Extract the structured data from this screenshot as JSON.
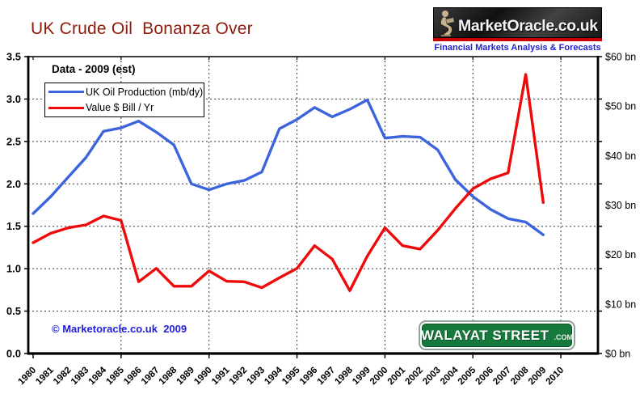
{
  "title": "UK Crude Oil  Bonanza Over",
  "logo": {
    "name": "MarketOracle.co.uk",
    "tagline": "Financial Markets Analysis & Forecasts",
    "stripe_color": "#CC0000",
    "tagline_color": "#2222CC"
  },
  "annotations": {
    "data_note": "Data - 2009 (est)",
    "copyright": "© Marketoracle.co.uk  2009",
    "street_sign": {
      "main": "WALAYAT STREET",
      "suffix": ".COM",
      "color": "#177A3D"
    }
  },
  "chart_data": {
    "type": "line",
    "x": [
      1980,
      1981,
      1982,
      1983,
      1984,
      1985,
      1986,
      1987,
      1988,
      1989,
      1990,
      1991,
      1992,
      1993,
      1994,
      1995,
      1996,
      1997,
      1998,
      1999,
      2000,
      2001,
      2002,
      2003,
      2004,
      2005,
      2006,
      2007,
      2008,
      2009,
      2010
    ],
    "series": [
      {
        "name": "UK Oil Production (mb/dy)",
        "axis": "left",
        "color": "#3C64DC",
        "values": [
          1.65,
          1.85,
          2.08,
          2.31,
          2.62,
          2.66,
          2.74,
          2.61,
          2.46,
          2.0,
          1.93,
          2.0,
          2.04,
          2.14,
          2.65,
          2.76,
          2.9,
          2.79,
          2.88,
          2.99,
          2.54,
          2.56,
          2.55,
          2.4,
          2.05,
          1.85,
          1.7,
          1.59,
          1.55,
          1.4
        ]
      },
      {
        "name": "Value $ Bill / Yr",
        "axis": "right",
        "color": "#EE0A0A",
        "values": [
          22.4,
          24.3,
          25.4,
          26.0,
          27.8,
          26.9,
          14.5,
          17.2,
          13.6,
          13.6,
          16.7,
          14.6,
          14.5,
          13.3,
          15.3,
          17.2,
          21.8,
          19.1,
          12.7,
          19.7,
          25.4,
          21.8,
          21.1,
          24.9,
          29.3,
          33.3,
          35.3,
          36.5,
          56.4,
          30.5
        ]
      }
    ],
    "left_axis": {
      "min": 0,
      "max": 3.5,
      "tick_step": 0.5,
      "tick_labels": [
        "0.0",
        "0.5",
        "1.0",
        "1.5",
        "2.0",
        "2.5",
        "3.0",
        "3.5"
      ]
    },
    "right_axis": {
      "min": 0,
      "max": 60,
      "tick_step": 10,
      "tick_labels": [
        "$0 bn",
        "$10 bn",
        "$20 bn",
        "$30 bn",
        "$40 bn",
        "$50 bn",
        "$60 bn"
      ]
    },
    "x_gridline_years": [
      1985,
      1990,
      1995,
      2000,
      2005,
      2010
    ],
    "grid": "dashed",
    "legend_position": "top-left-inside"
  }
}
